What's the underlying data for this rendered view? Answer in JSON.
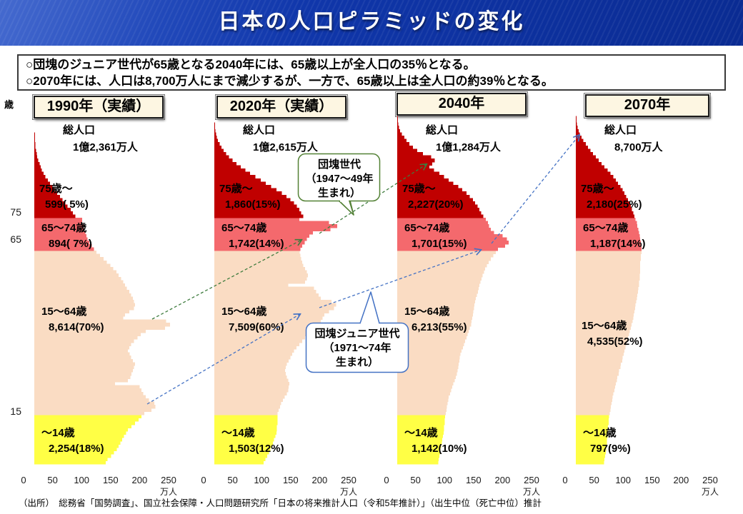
{
  "header": {
    "title": "日本の人口ピラミッドの変化"
  },
  "summary": {
    "line1": "○団塊のジュニア世代が65歳となる2040年には、65歳以上が全人口の35％となる。",
    "line2": "○2070年には、人口は8,700万人にまで減少するが、一方で、65歳以上は全人口の約39％となる。"
  },
  "axis": {
    "unit_label": "歳",
    "y_ticks": [
      "75",
      "65",
      "15"
    ],
    "x_ticks": [
      "0",
      "50",
      "100",
      "150",
      "200",
      "250"
    ],
    "x_unit": "万人"
  },
  "callouts": {
    "dankai": {
      "line1": "団塊世代",
      "line2": "（1947～49年",
      "line3": "生まれ）"
    },
    "junior": {
      "line1": "団塊ジュニア世代",
      "line2": "（1971～74年",
      "line3": "生まれ）"
    }
  },
  "source": "（出所）　総務省「国勢調査」、国立社会保障・人口問題研究所「日本の将来推計人口（令和5年推計）」（出生中位（死亡中位）推計",
  "colors": {
    "age_75_plus": "#c00000",
    "age_65_74": "#f4696d",
    "age_15_64": "#fadcc3",
    "age_0_14": "#ffff45",
    "arrow_dankai": "#3e7c3e",
    "arrow_junior": "#4472c4",
    "header_blue": "#0f35a8",
    "yearbox_bg": "#fdf6e2"
  },
  "chart_data": {
    "type": "bar",
    "subtype": "population-pyramid-small-multiples",
    "x_axis": {
      "ticks": [
        0,
        50,
        100,
        150,
        200,
        250
      ],
      "unit": "万人",
      "max": 250
    },
    "y_axis": {
      "unit": "歳",
      "age_range": [
        0,
        105
      ],
      "boundaries": [
        15,
        65,
        75
      ]
    },
    "pyramids": [
      {
        "year_label": "1990年（実績）",
        "total_label": "総人口",
        "total_value": "1億2,361万人",
        "groups": [
          {
            "label": "75歳～",
            "value": "599( 5%)"
          },
          {
            "label": "65～74歳",
            "value": "894( 7%)"
          },
          {
            "label": "15～64歳",
            "value": "8,614(70%)"
          },
          {
            "label": "～14歳",
            "value": "2,254(18%)"
          }
        ],
        "ages": [
          122,
          125,
          131,
          136,
          141,
          144,
          147,
          150,
          153,
          157,
          160,
          166,
          172,
          178,
          183,
          188,
          200,
          207,
          205,
          196,
          190,
          186,
          183,
          180,
          138,
          160,
          164,
          166,
          168,
          170,
          172,
          168,
          165,
          163,
          160,
          162,
          165,
          170,
          176,
          182,
          190,
          223,
          232,
          225,
          152,
          155,
          162,
          170,
          172,
          170,
          168,
          165,
          162,
          158,
          155,
          152,
          148,
          144,
          140,
          135,
          130,
          124,
          118,
          112,
          106,
          102,
          98,
          94,
          91,
          89,
          87,
          85,
          84,
          82,
          82,
          70,
          66,
          62,
          57,
          53,
          48,
          44,
          39,
          35,
          31,
          27,
          23,
          19,
          16,
          13,
          11,
          9,
          7,
          5,
          4,
          3,
          2,
          2,
          1,
          1,
          1,
          0,
          0,
          0,
          0,
          0
        ]
      },
      {
        "year_label": "2020年（実績）",
        "total_label": "総人口",
        "total_value": "1億2,615万人",
        "groups": [
          {
            "label": "75歳～",
            "value": "1,860(15%)"
          },
          {
            "label": "65～74歳",
            "value": "1,742(14%)"
          },
          {
            "label": "15～64歳",
            "value": "7,509(60%)"
          },
          {
            "label": "～14歳",
            "value": "1,503(12%)"
          }
        ],
        "ages": [
          84,
          87,
          90,
          93,
          96,
          98,
          100,
          102,
          104,
          106,
          107,
          107,
          108,
          108,
          108,
          108,
          110,
          112,
          114,
          117,
          120,
          124,
          126,
          127,
          128,
          126,
          124,
          122,
          121,
          122,
          124,
          127,
          130,
          133,
          136,
          140,
          145,
          150,
          155,
          160,
          165,
          172,
          178,
          182,
          185,
          188,
          196,
          204,
          208,
          200,
          182,
          178,
          174,
          170,
          126,
          155,
          158,
          160,
          158,
          155,
          152,
          150,
          148,
          147,
          146,
          147,
          150,
          154,
          158,
          162,
          168,
          198,
          210,
          196,
          145,
          152,
          148,
          145,
          141,
          136,
          130,
          123,
          115,
          106,
          97,
          88,
          79,
          70,
          61,
          53,
          45,
          38,
          31,
          25,
          20,
          16,
          12,
          9,
          6,
          4,
          3,
          2,
          1,
          1,
          0,
          0
        ]
      },
      {
        "year_label": "2040年",
        "total_label": "総人口",
        "total_value": "1億1,284万人",
        "groups": [
          {
            "label": "75歳～",
            "value": "2,227(20%)"
          },
          {
            "label": "65～74歳",
            "value": "1,701(15%)"
          },
          {
            "label": "15～64歳",
            "value": "6,213(55%)"
          },
          {
            "label": "～14歳",
            "value": "1,142(10%)"
          }
        ],
        "ages": [
          70,
          71,
          72,
          73,
          74,
          75,
          76,
          77,
          78,
          79,
          80,
          80,
          81,
          81,
          82,
          83,
          84,
          85,
          86,
          87,
          88,
          90,
          92,
          94,
          96,
          98,
          100,
          102,
          103,
          104,
          105,
          106,
          107,
          108,
          110,
          112,
          114,
          116,
          118,
          120,
          122,
          124,
          126,
          127,
          128,
          129,
          130,
          131,
          132,
          133,
          134,
          136,
          138,
          139,
          140,
          142,
          144,
          146,
          148,
          150,
          153,
          156,
          160,
          164,
          168,
          172,
          184,
          190,
          187,
          180,
          165,
          160,
          157,
          155,
          151,
          147,
          143,
          140,
          137,
          133,
          129,
          124,
          118,
          111,
          104,
          96,
          88,
          80,
          72,
          63,
          55,
          60,
          64,
          58,
          44,
          34,
          27,
          21,
          16,
          12,
          8,
          5,
          3,
          2,
          1,
          1
        ]
      },
      {
        "year_label": "2070年",
        "total_label": "総人口",
        "total_value": "8,700万人",
        "groups": [
          {
            "label": "75歳～",
            "value": "2,180(25%)"
          },
          {
            "label": "65～74歳",
            "value": "1,187(14%)"
          },
          {
            "label": "15～64歳",
            "value": "4,535(52%)"
          },
          {
            "label": "～14歳",
            "value": "797(9%)"
          }
        ],
        "ages": [
          48,
          49,
          50,
          51,
          52,
          52,
          53,
          53,
          54,
          54,
          55,
          55,
          56,
          56,
          57,
          58,
          59,
          60,
          61,
          62,
          63,
          64,
          66,
          67,
          68,
          70,
          71,
          73,
          74,
          76,
          77,
          79,
          80,
          82,
          83,
          85,
          86,
          88,
          89,
          91,
          92,
          94,
          95,
          97,
          98,
          99,
          100,
          101,
          102,
          103,
          104,
          105,
          106,
          107,
          108,
          108,
          109,
          109,
          110,
          110,
          110,
          110,
          111,
          111,
          112,
          112,
          112,
          111,
          110,
          109,
          108,
          107,
          105,
          104,
          102,
          100,
          98,
          96,
          94,
          92,
          89,
          86,
          83,
          80,
          76,
          72,
          68,
          64,
          59,
          54,
          49,
          44,
          39,
          34,
          29,
          25,
          21,
          17,
          13,
          10,
          7,
          5,
          3,
          2,
          1,
          1
        ]
      }
    ]
  }
}
